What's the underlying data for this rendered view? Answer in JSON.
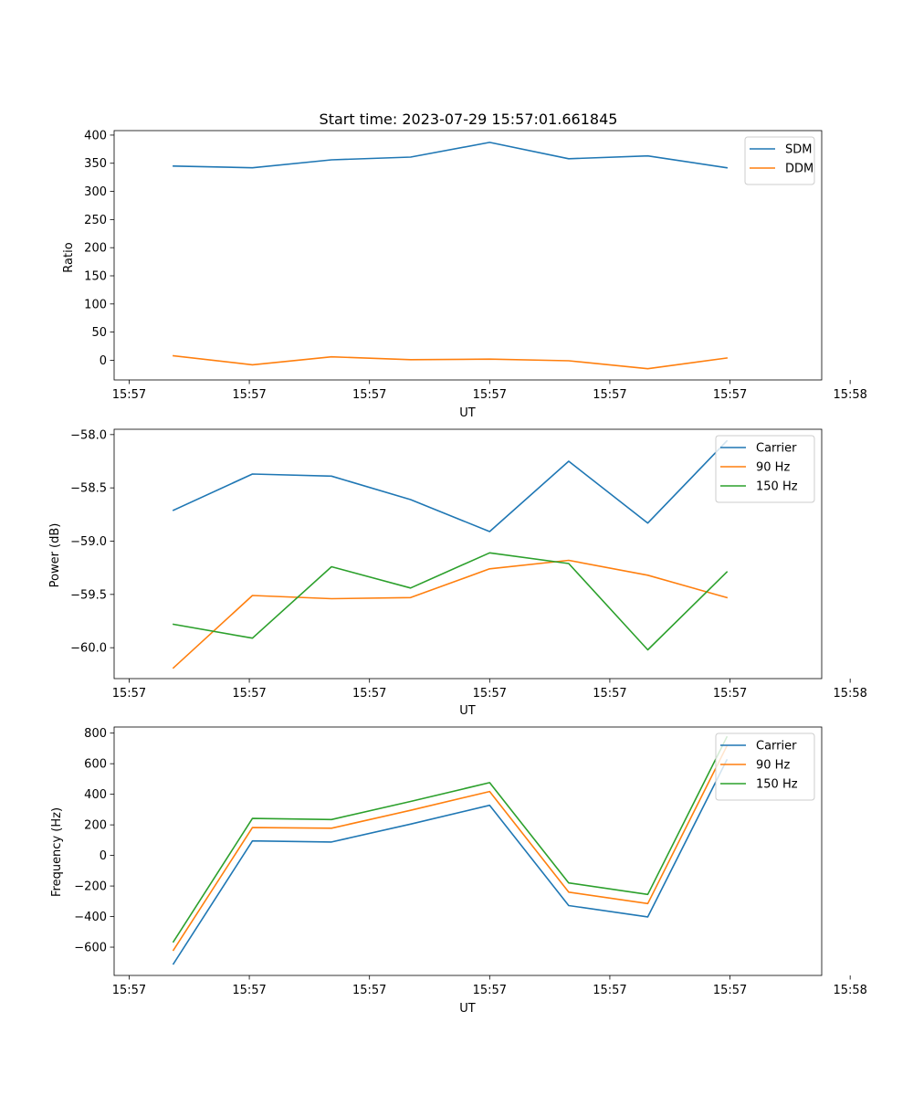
{
  "chart_data": [
    {
      "type": "line",
      "title": "Start time: 2023-07-29 15:57:01.661845",
      "xlabel": "UT",
      "ylabel": "Ratio",
      "x": [
        1,
        2,
        3,
        4,
        5,
        6,
        7,
        8
      ],
      "xlim": [
        0.25,
        9.2
      ],
      "xticks": [
        0.44,
        1.96,
        3.48,
        5.0,
        6.52,
        8.04,
        9.56
      ],
      "xticklabels": [
        "15:57",
        "15:57",
        "15:57",
        "15:57",
        "15:57",
        "15:57",
        "15:58"
      ],
      "ylim": [
        -35,
        408
      ],
      "yticks": [
        0,
        50,
        100,
        150,
        200,
        250,
        300,
        350,
        400
      ],
      "legend": "top-right",
      "series": [
        {
          "name": "SDM",
          "color": "#1f77b4",
          "values": [
            345,
            342,
            356,
            361,
            387,
            358,
            363,
            342
          ]
        },
        {
          "name": "DDM",
          "color": "#ff7f0e",
          "values": [
            8,
            -8,
            6,
            1,
            2,
            -1,
            -15,
            4
          ]
        }
      ]
    },
    {
      "type": "line",
      "title": "",
      "xlabel": "UT",
      "ylabel": "Power (dB)",
      "x": [
        1,
        2,
        3,
        4,
        5,
        6,
        7,
        8
      ],
      "xlim": [
        0.25,
        9.2
      ],
      "xticks": [
        0.44,
        1.96,
        3.48,
        5.0,
        6.52,
        8.04,
        9.56
      ],
      "xticklabels": [
        "15:57",
        "15:57",
        "15:57",
        "15:57",
        "15:57",
        "15:57",
        "15:58"
      ],
      "ylim": [
        -60.29,
        -57.95
      ],
      "yticks": [
        -60.0,
        -59.5,
        -59.0,
        -58.5,
        -58.0
      ],
      "yticklabels": [
        "−60.0",
        "−59.5",
        "−59.0",
        "−58.5",
        "−58.0"
      ],
      "legend": "top-right",
      "series": [
        {
          "name": "Carrier",
          "color": "#1f77b4",
          "values": [
            -58.71,
            -58.37,
            -58.39,
            -58.61,
            -58.91,
            -58.25,
            -58.83,
            -58.06
          ]
        },
        {
          "name": "90 Hz",
          "color": "#ff7f0e",
          "values": [
            -60.19,
            -59.51,
            -59.54,
            -59.53,
            -59.26,
            -59.18,
            -59.32,
            -59.53
          ]
        },
        {
          "name": "150 Hz",
          "color": "#2ca02c",
          "values": [
            -59.78,
            -59.91,
            -59.24,
            -59.44,
            -59.11,
            -59.21,
            -60.02,
            -59.29
          ]
        }
      ]
    },
    {
      "type": "line",
      "title": "",
      "xlabel": "UT",
      "ylabel": "Frequency (Hz)",
      "x": [
        1,
        2,
        3,
        4,
        5,
        6,
        7,
        8
      ],
      "xlim": [
        0.25,
        9.2
      ],
      "xticks": [
        0.44,
        1.96,
        3.48,
        5.0,
        6.52,
        8.04,
        9.56
      ],
      "xticklabels": [
        "15:57",
        "15:57",
        "15:57",
        "15:57",
        "15:57",
        "15:57",
        "15:58"
      ],
      "ylim": [
        -785,
        840
      ],
      "yticks": [
        -600,
        -400,
        -200,
        0,
        200,
        400,
        600,
        800
      ],
      "yticklabels": [
        "−600",
        "−400",
        "−200",
        "0",
        "200",
        "400",
        "600",
        "800"
      ],
      "legend": "top-right",
      "series": [
        {
          "name": "Carrier",
          "color": "#1f77b4",
          "values": [
            -710,
            95,
            88,
            205,
            328,
            -328,
            -402,
            625
          ]
        },
        {
          "name": "90 Hz",
          "color": "#ff7f0e",
          "values": [
            -620,
            182,
            178,
            295,
            418,
            -240,
            -315,
            715
          ]
        },
        {
          "name": "150 Hz",
          "color": "#2ca02c",
          "values": [
            -565,
            242,
            235,
            353,
            476,
            -180,
            -255,
            775
          ]
        }
      ]
    }
  ]
}
